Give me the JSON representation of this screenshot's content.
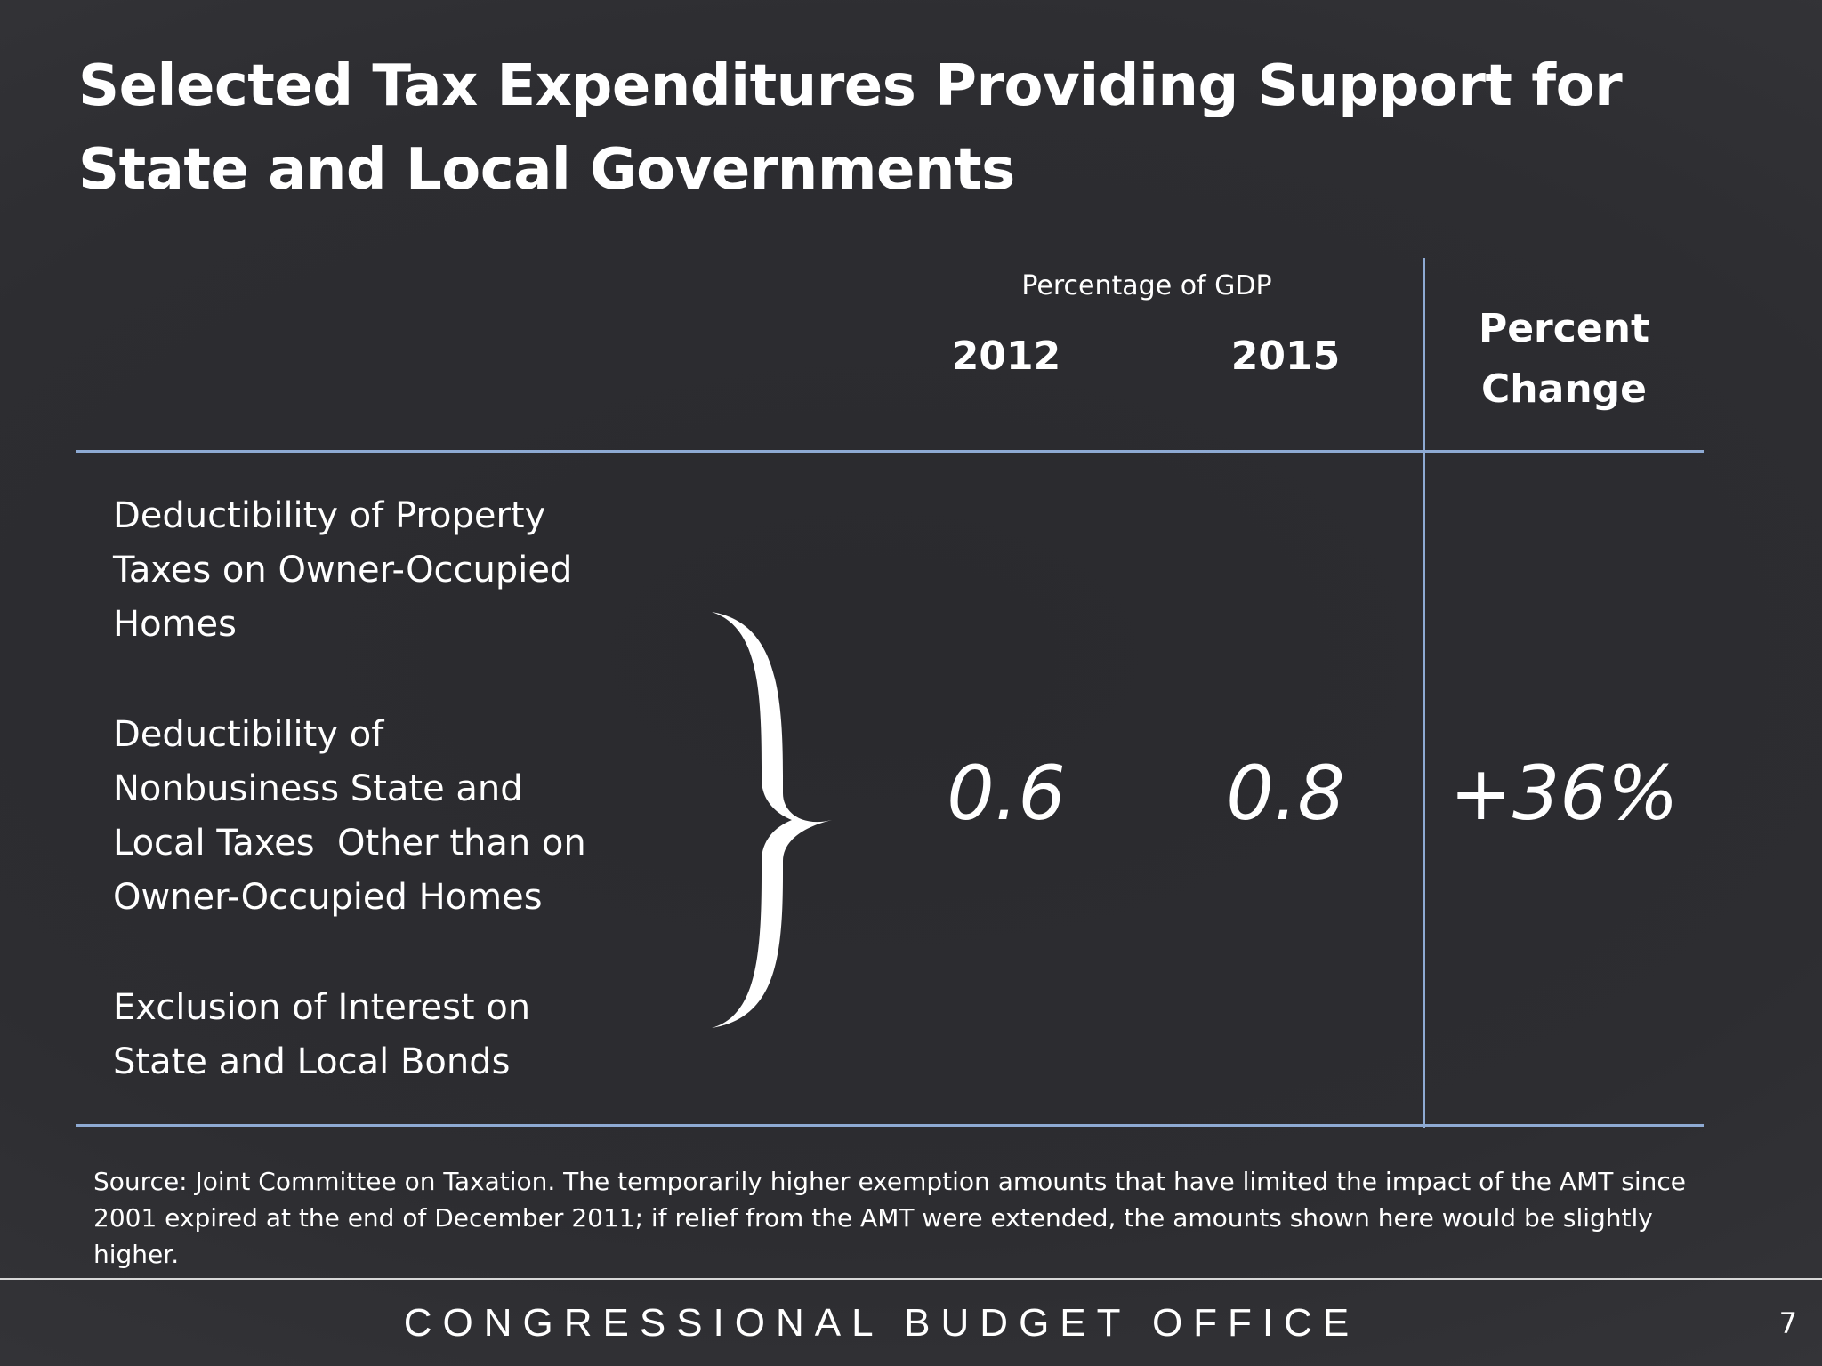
{
  "slide": {
    "title": "Selected Tax Expenditures Providing Support for State and Local Governments"
  },
  "table": {
    "group_header": "Percentage of GDP",
    "columns": [
      "2012",
      "2015"
    ],
    "change_header_line1": "Percent",
    "change_header_line2": "Change",
    "items": [
      [
        "Deductibility of Property",
        "Taxes on Owner-Occupied",
        "Homes"
      ],
      [
        "Deductibility of",
        "Nonbusiness State and",
        "Local Taxes  Other than on",
        "Owner-Occupied Homes"
      ],
      [
        "Exclusion of Interest on",
        "State and Local Bonds"
      ]
    ],
    "values": {
      "y2012": "0.6",
      "y2015": "0.8",
      "change": "+36%"
    }
  },
  "source_note": [
    "Source: Joint Committee on Taxation. The temporarily higher exemption amounts that have limited the impact of the AMT since",
    "2001 expired at the end of December 2011; if relief from the AMT were extended, the amounts shown here would be slightly",
    "higher."
  ],
  "footer": {
    "organization": "CONGRESSIONAL BUDGET OFFICE",
    "page_number": "7"
  },
  "colors": {
    "background": "#2d2d31",
    "rule": "#8eaad3",
    "text": "#ffffff"
  }
}
